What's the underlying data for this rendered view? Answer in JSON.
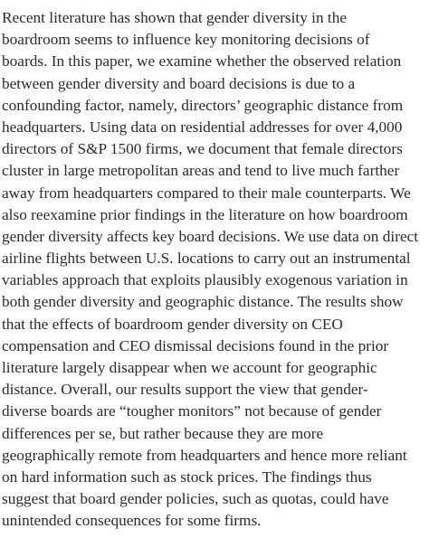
{
  "abstract": {
    "lines": [
      "Recent literature has shown that gender diversity in the",
      "boardroom seems to influence key monitoring decisions of",
      "boards. In this paper, we examine whether the observed relation",
      "between gender diversity and board decisions is due to a",
      "confounding factor, namely, directors’ geographic distance from",
      "headquarters. Using data on residential addresses for over 4,000",
      "directors of S&P 1500 firms, we document that female directors",
      "cluster in large metropolitan areas and tend to live much farther",
      "away from headquarters compared to their male counterparts. We",
      "also reexamine prior findings in the literature on how boardroom",
      "gender diversity affects key board decisions. We use data on direct",
      "airline flights between U.S. locations to carry out an instrumental",
      "variables approach that exploits plausibly exogenous variation in",
      "both gender diversity and geographic distance. The results show",
      "that the effects of boardroom gender diversity on CEO",
      "compensation and CEO dismissal decisions found in the prior",
      "literature largely disappear when we account for geographic",
      "distance. Overall, our results support the view that gender-",
      "diverse boards are “tougher monitors” not because of gender",
      "differences per se, but rather because they are more",
      "geographically remote from headquarters and hence more reliant",
      "on hard information such as stock prices. The findings thus",
      "suggest that board gender policies, such as quotas, could have",
      "unintended consequences for some firms."
    ]
  }
}
